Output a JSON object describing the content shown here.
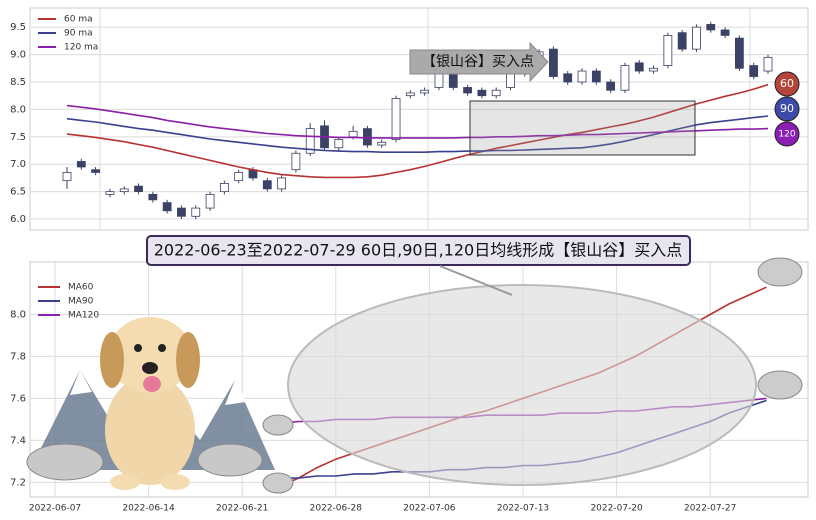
{
  "chart_data": [
    {
      "type": "candlestick",
      "annotation": "【银山谷】买入点",
      "end_labels": [
        "60",
        "90",
        "120"
      ],
      "ylim": [
        5.8,
        9.85
      ],
      "yticks": [
        {
          "value": 6,
          "label": "6.0"
        },
        6.5,
        {
          "value": 7,
          "label": "7.0"
        },
        7.5,
        {
          "value": 8,
          "label": "8.0"
        },
        8.5,
        {
          "value": 9,
          "label": "9.0"
        },
        9.5
      ],
      "grid": true,
      "legend": "upper left",
      "up_color": "#ffffff",
      "down_color": "#3b4266",
      "edge_color": "#3b4266",
      "open": [
        6.7,
        7.05,
        6.9,
        6.45,
        6.5,
        6.6,
        6.45,
        6.3,
        6.2,
        6.05,
        6.2,
        6.5,
        6.7,
        6.9,
        6.7,
        6.55,
        6.9,
        7.2,
        7.7,
        7.3,
        7.5,
        7.65,
        7.35,
        7.45,
        8.25,
        8.3,
        8.4,
        8.8,
        8.4,
        8.35,
        8.25,
        8.4,
        8.65,
        8.9,
        9.1,
        8.65,
        8.5,
        8.7,
        8.5,
        8.35,
        8.85,
        8.7,
        8.8,
        9.4,
        9.1,
        9.55,
        9.45,
        9.3,
        8.8,
        8.7
      ],
      "high": [
        6.95,
        7.1,
        6.95,
        6.55,
        6.6,
        6.65,
        6.5,
        6.35,
        6.25,
        6.25,
        6.5,
        6.7,
        6.9,
        6.95,
        6.75,
        6.8,
        7.25,
        7.75,
        7.8,
        7.5,
        7.7,
        7.7,
        7.45,
        8.25,
        8.35,
        8.4,
        8.85,
        8.85,
        8.45,
        8.4,
        8.4,
        8.7,
        8.9,
        9.1,
        9.15,
        8.7,
        8.75,
        8.75,
        8.55,
        8.85,
        8.9,
        8.8,
        9.4,
        9.45,
        9.55,
        9.6,
        9.5,
        9.35,
        8.85,
        9.0
      ],
      "low": [
        6.55,
        6.9,
        6.8,
        6.4,
        6.45,
        6.45,
        6.3,
        6.1,
        6.0,
        6.0,
        6.15,
        6.45,
        6.65,
        6.7,
        6.5,
        6.5,
        6.85,
        7.15,
        7.25,
        7.25,
        7.45,
        7.3,
        7.3,
        7.4,
        8.2,
        8.25,
        8.35,
        8.35,
        8.25,
        8.2,
        8.2,
        8.35,
        8.6,
        8.85,
        8.55,
        8.45,
        8.45,
        8.45,
        8.3,
        8.3,
        8.65,
        8.65,
        8.75,
        9.05,
        9.05,
        9.4,
        9.3,
        8.7,
        8.55,
        8.65
      ],
      "close": [
        6.85,
        6.95,
        6.85,
        6.5,
        6.55,
        6.5,
        6.35,
        6.15,
        6.05,
        6.2,
        6.45,
        6.65,
        6.85,
        6.75,
        6.55,
        6.75,
        7.2,
        7.65,
        7.3,
        7.45,
        7.6,
        7.35,
        7.4,
        8.2,
        8.3,
        8.35,
        8.75,
        8.4,
        8.3,
        8.25,
        8.35,
        8.65,
        8.85,
        9.05,
        8.6,
        8.5,
        8.7,
        8.5,
        8.35,
        8.8,
        8.7,
        8.75,
        9.35,
        9.1,
        9.5,
        9.45,
        9.35,
        8.75,
        8.6,
        8.95
      ],
      "series": [
        {
          "name": "60 ma",
          "color": "#b83232",
          "values": [
            7.55,
            7.52,
            7.49,
            7.45,
            7.41,
            7.36,
            7.31,
            7.25,
            7.19,
            7.13,
            7.07,
            7.01,
            6.95,
            6.9,
            6.85,
            6.81,
            6.79,
            6.77,
            6.76,
            6.76,
            6.76,
            6.77,
            6.8,
            6.85,
            6.9,
            6.96,
            7.03,
            7.1,
            7.17,
            7.23,
            7.29,
            7.34,
            7.39,
            7.44,
            7.49,
            7.54,
            7.58,
            7.63,
            7.68,
            7.73,
            7.79,
            7.86,
            7.94,
            8.02,
            8.1,
            8.17,
            8.24,
            8.3,
            8.37,
            8.45
          ]
        },
        {
          "name": "90 ma",
          "color": "#3a3f8f",
          "values": [
            7.83,
            7.8,
            7.77,
            7.73,
            7.69,
            7.65,
            7.62,
            7.58,
            7.54,
            7.5,
            7.46,
            7.43,
            7.4,
            7.37,
            7.34,
            7.31,
            7.29,
            7.27,
            7.25,
            7.24,
            7.23,
            7.23,
            7.22,
            7.22,
            7.22,
            7.22,
            7.23,
            7.23,
            7.24,
            7.24,
            7.25,
            7.25,
            7.26,
            7.27,
            7.28,
            7.29,
            7.3,
            7.33,
            7.37,
            7.42,
            7.48,
            7.54,
            7.6,
            7.66,
            7.72,
            7.76,
            7.79,
            7.82,
            7.85,
            7.88
          ]
        },
        {
          "name": "120 ma",
          "color": "#8b1fa8",
          "values": [
            8.07,
            8.04,
            8.01,
            7.97,
            7.93,
            7.89,
            7.85,
            7.8,
            7.76,
            7.72,
            7.68,
            7.65,
            7.62,
            7.59,
            7.56,
            7.54,
            7.52,
            7.51,
            7.5,
            7.49,
            7.49,
            7.48,
            7.48,
            7.48,
            7.48,
            7.48,
            7.48,
            7.48,
            7.49,
            7.49,
            7.5,
            7.5,
            7.51,
            7.52,
            7.52,
            7.53,
            7.54,
            7.54,
            7.55,
            7.56,
            7.57,
            7.58,
            7.59,
            7.6,
            7.61,
            7.62,
            7.63,
            7.64,
            7.64,
            7.65
          ]
        }
      ]
    },
    {
      "type": "line",
      "title": "2022-06-23至2022-07-29 60日,90日,120日均线形成【银山谷】买入点",
      "categories": [
        "2022-06-07",
        null,
        null,
        null,
        null,
        "2022-06-14",
        null,
        null,
        null,
        null,
        "2022-06-21",
        null,
        null,
        null,
        null,
        "2022-06-28",
        null,
        null,
        null,
        null,
        "2022-07-06",
        null,
        null,
        null,
        null,
        "2022-07-13",
        null,
        null,
        null,
        null,
        "2022-07-20",
        null,
        null,
        null,
        null,
        "2022-07-27",
        null,
        null,
        null,
        null
      ],
      "ylim": [
        7.13,
        8.25
      ],
      "yticks": [
        7.2,
        7.4,
        7.6,
        7.8,
        {
          "value": 8,
          "label": "8.0"
        }
      ],
      "grid": true,
      "legend": "upper left",
      "series": [
        {
          "name": "MA60",
          "color": "#b83232",
          "values": [
            null,
            null,
            null,
            null,
            null,
            null,
            null,
            null,
            null,
            null,
            null,
            null,
            7.18,
            7.22,
            7.27,
            7.31,
            7.34,
            7.37,
            7.4,
            7.43,
            7.46,
            7.49,
            7.52,
            7.54,
            7.57,
            7.6,
            7.63,
            7.66,
            7.69,
            7.72,
            7.76,
            7.8,
            7.85,
            7.9,
            7.95,
            8.0,
            8.05,
            8.09,
            8.13,
            null
          ]
        },
        {
          "name": "MA90",
          "color": "#3a3f8f",
          "values": [
            null,
            null,
            null,
            null,
            null,
            null,
            null,
            null,
            null,
            null,
            null,
            null,
            7.22,
            7.22,
            7.23,
            7.23,
            7.24,
            7.24,
            7.25,
            7.25,
            7.25,
            7.26,
            7.26,
            7.27,
            7.27,
            7.28,
            7.28,
            7.29,
            7.3,
            7.32,
            7.34,
            7.37,
            7.4,
            7.43,
            7.46,
            7.49,
            7.53,
            7.56,
            7.59,
            null
          ]
        },
        {
          "name": "MA120",
          "color": "#8b1fa8",
          "values": [
            null,
            null,
            null,
            null,
            null,
            null,
            null,
            null,
            null,
            null,
            null,
            null,
            7.48,
            7.49,
            7.49,
            7.5,
            7.5,
            7.5,
            7.51,
            7.51,
            7.51,
            7.51,
            7.51,
            7.52,
            7.52,
            7.52,
            7.52,
            7.53,
            7.53,
            7.53,
            7.54,
            7.54,
            7.55,
            7.56,
            7.56,
            7.57,
            7.58,
            7.59,
            7.6,
            null
          ]
        }
      ]
    }
  ]
}
